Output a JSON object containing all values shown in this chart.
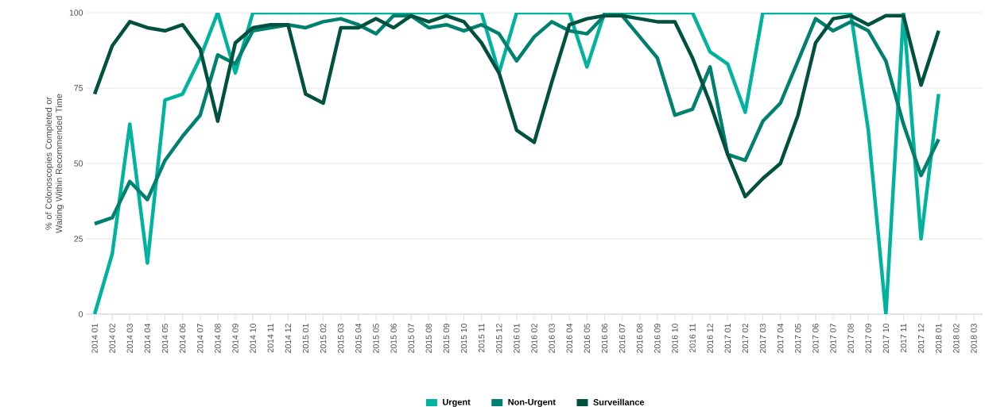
{
  "chart_data": {
    "type": "line",
    "ylabel": "% of Colonoscopies Completed or Waiting Within Recommended Time",
    "categories": [
      "2014 01",
      "2014 02",
      "2014 03",
      "2014 04",
      "2014 05",
      "2014 06",
      "2014 07",
      "2014 08",
      "2014 09",
      "2014 10",
      "2014 11",
      "2014 12",
      "2015 01",
      "2015 02",
      "2015 03",
      "2015 04",
      "2015 05",
      "2015 06",
      "2015 07",
      "2015 08",
      "2015 09",
      "2015 10",
      "2015 11",
      "2015 12",
      "2016 01",
      "2016 02",
      "2016 03",
      "2016 04",
      "2016 05",
      "2016 06",
      "2016 07",
      "2016 08",
      "2016 09",
      "2016 10",
      "2016 11",
      "2016 12",
      "2017 01",
      "2017 02",
      "2017 03",
      "2017 04",
      "2017 05",
      "2017 06",
      "2017 07",
      "2017 08",
      "2017 09",
      "2017 10",
      "2017 11",
      "2017 12",
      "2018 01",
      "2018 02",
      "2018 03"
    ],
    "series": [
      {
        "name": "Urgent",
        "color": "#00b39f",
        "values": [
          0,
          20,
          63,
          17,
          71,
          73,
          85,
          100,
          80,
          100,
          100,
          100,
          100,
          100,
          100,
          100,
          100,
          100,
          100,
          100,
          100,
          100,
          100,
          80,
          100,
          100,
          100,
          100,
          82,
          100,
          100,
          100,
          100,
          100,
          100,
          87,
          83,
          67,
          100,
          100,
          100,
          100,
          100,
          100,
          61,
          0,
          100,
          25,
          73,
          null,
          null
        ]
      },
      {
        "name": "Non-Urgent",
        "color": "#00806e",
        "values": [
          30,
          32,
          44,
          38,
          51,
          59,
          66,
          86,
          83,
          94,
          95,
          96,
          95,
          97,
          98,
          96,
          93,
          99,
          99,
          95,
          96,
          94,
          96,
          93,
          84,
          92,
          97,
          94,
          93,
          99,
          99,
          92,
          85,
          66,
          68,
          82,
          53,
          51,
          64,
          70,
          84,
          98,
          94,
          97,
          94,
          84,
          63,
          46,
          58,
          null,
          null
        ]
      },
      {
        "name": "Surveillance",
        "color": "#00523f",
        "values": [
          73,
          89,
          97,
          95,
          94,
          96,
          88,
          64,
          90,
          95,
          96,
          96,
          73,
          70,
          95,
          95,
          98,
          95,
          99,
          97,
          99,
          97,
          90,
          80,
          61,
          57,
          77,
          96,
          98,
          99,
          99,
          98,
          97,
          97,
          85,
          70,
          53,
          39,
          45,
          50,
          66,
          90,
          98,
          99,
          96,
          99,
          99,
          76,
          94,
          null,
          null
        ]
      }
    ],
    "ylim": [
      0,
      100
    ],
    "yticks": [
      0,
      25,
      50,
      75,
      100
    ],
    "grid": "y",
    "legend": "bottom",
    "line_style": "solid",
    "marker": "none"
  }
}
